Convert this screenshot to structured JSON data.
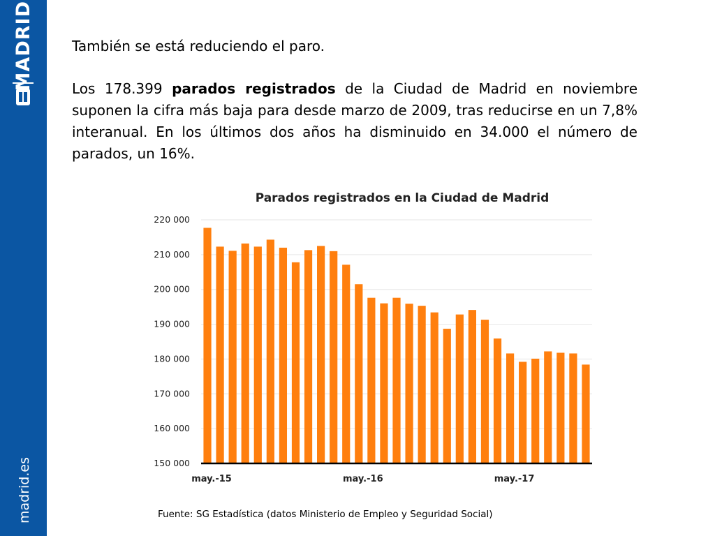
{
  "sidebar": {
    "brand": "MADRID",
    "site": "madrid.es",
    "background_color": "#0b56a3"
  },
  "headline": "También se está reduciendo el paro.",
  "paragraph": {
    "before_bold": "Los 178.399 ",
    "bold": "parados registrados",
    "after_bold": " de la Ciudad de Madrid en noviembre suponen la cifra más baja para desde marzo de 2009, tras reducirse en un 7,8% interanual. En los últimos dos años ha disminuido en 34.000 el número de parados, un 16%."
  },
  "chart_data": {
    "type": "bar",
    "title": "Parados registrados en la Ciudad de Madrid",
    "xlabel": "",
    "ylabel": "",
    "ylim": [
      150000,
      220000
    ],
    "yticks": [
      150000,
      160000,
      170000,
      180000,
      190000,
      200000,
      210000,
      220000
    ],
    "ytick_labels": [
      "150 000",
      "160 000",
      "170 000",
      "180 000",
      "190 000",
      "200 000",
      "210 000",
      "220 000"
    ],
    "x_tick_labels": [
      {
        "index": 0,
        "label": "may.-15"
      },
      {
        "index": 12,
        "label": "may.-16"
      },
      {
        "index": 24,
        "label": "may.-17"
      }
    ],
    "values": [
      217700,
      212300,
      211100,
      213200,
      212300,
      214300,
      212000,
      207800,
      211300,
      212500,
      211000,
      207100,
      201500,
      197600,
      196000,
      197600,
      195900,
      195300,
      193400,
      188700,
      192800,
      194100,
      191300,
      185900,
      181600,
      179200,
      180100,
      182200,
      181800,
      181600,
      178399
    ],
    "bar_color": "#ff7f0e",
    "grid": true
  },
  "source": "Fuente: SG Estadística (datos Ministerio de Empleo y Seguridad Social)"
}
